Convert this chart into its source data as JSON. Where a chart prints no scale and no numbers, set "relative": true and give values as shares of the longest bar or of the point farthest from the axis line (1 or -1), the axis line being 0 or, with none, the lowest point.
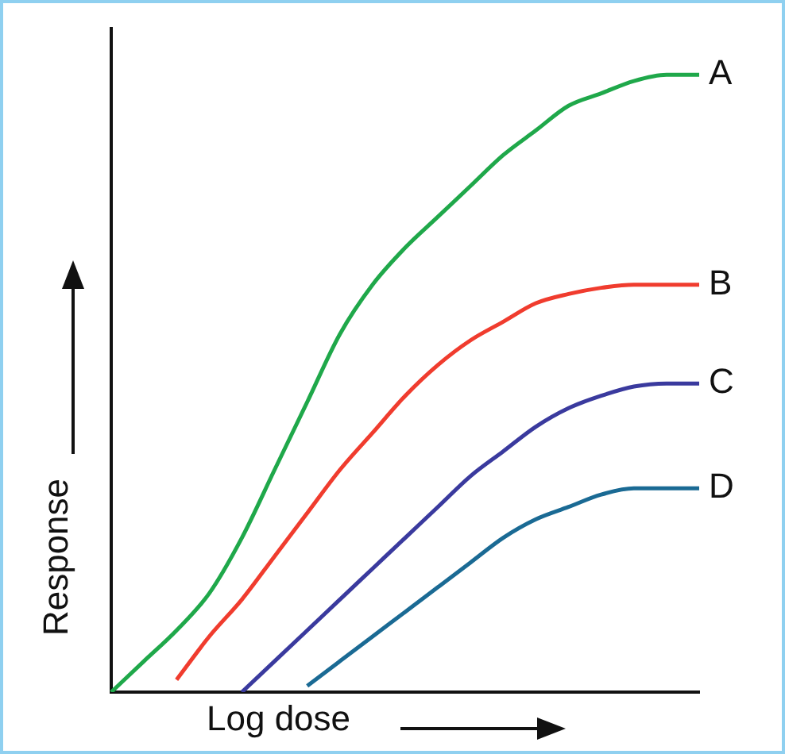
{
  "chart_data": {
    "type": "line",
    "relative": true,
    "xlabel": "Log dose",
    "ylabel": "Response",
    "legend": false,
    "marker": "none",
    "line_style": "solid",
    "grid": false,
    "categories": [
      null,
      null,
      null,
      null,
      null,
      null,
      null,
      null,
      null,
      null,
      null,
      null,
      null,
      null,
      null,
      null,
      null,
      null,
      null
    ],
    "series": [
      {
        "name": "A",
        "color": "#1fa84a",
        "values": [
          0,
          0.05,
          0.1,
          0.16,
          0.25,
          0.36,
          0.47,
          0.58,
          0.66,
          0.72,
          0.77,
          0.82,
          0.87,
          0.91,
          0.95,
          0.97,
          0.99,
          1.0,
          1.0
        ]
      },
      {
        "name": "B",
        "color": "#f03c2e",
        "values": [
          null,
          null,
          0.02,
          0.09,
          0.15,
          0.22,
          0.29,
          0.36,
          0.42,
          0.48,
          0.53,
          0.57,
          0.6,
          0.63,
          0.645,
          0.655,
          0.66,
          0.66,
          0.66
        ]
      },
      {
        "name": "C",
        "color": "#3a3a9e",
        "values": [
          null,
          null,
          null,
          null,
          0,
          0.05,
          0.1,
          0.15,
          0.2,
          0.25,
          0.3,
          0.35,
          0.39,
          0.43,
          0.46,
          0.48,
          0.495,
          0.5,
          0.5
        ]
      },
      {
        "name": "D",
        "color": "#1a6a94",
        "values": [
          null,
          null,
          null,
          null,
          null,
          null,
          0.01,
          0.05,
          0.09,
          0.13,
          0.17,
          0.21,
          0.25,
          0.28,
          0.3,
          0.32,
          0.33,
          0.33,
          0.33
        ]
      }
    ]
  }
}
